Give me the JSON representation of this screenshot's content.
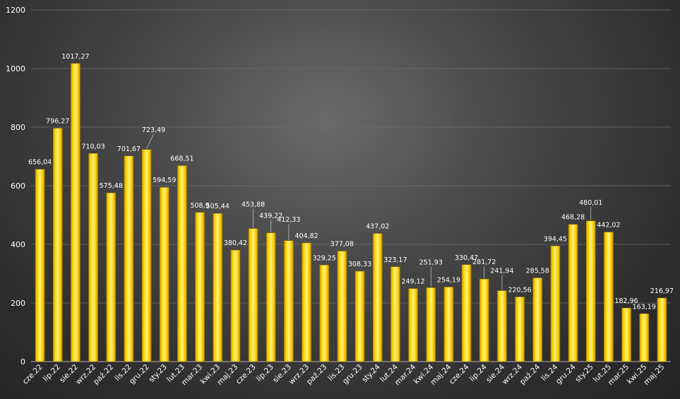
{
  "chart_data": {
    "type": "bar",
    "title": "",
    "xlabel": "",
    "ylabel": "",
    "ylim": [
      0,
      1200
    ],
    "yticks": [
      0,
      200,
      400,
      600,
      800,
      1000,
      1200
    ],
    "grid": true,
    "legend": "none",
    "bar_color": "#f5c400",
    "categories": [
      "cze.22",
      "lip.22",
      "sie.22",
      "wrz.22",
      "paź.22",
      "lis.22",
      "gru.22",
      "sty.23",
      "lut.23",
      "mar.23",
      "kwi.23",
      "maj.23",
      "cze.23",
      "lip.23",
      "sie.23",
      "wrz.23",
      "paź.23",
      "lis.23",
      "gru.23",
      "sty.24",
      "lut.24",
      "mar.24",
      "kwi.24",
      "maj.24",
      "cze.24",
      "lip.24",
      "sie.24",
      "wrz.24",
      "paź.24",
      "lis.24",
      "gru.24",
      "sty.25",
      "lut.25",
      "mar.25",
      "kwi.25",
      "maj.25"
    ],
    "values": [
      656.04,
      796.27,
      1017.27,
      710.03,
      575.48,
      701.67,
      723.49,
      594.59,
      668.51,
      508.9,
      505.44,
      380.42,
      453.88,
      439.22,
      412.33,
      404.82,
      329.25,
      377.08,
      308.33,
      437.02,
      323.17,
      249.12,
      251.93,
      254.19,
      330.47,
      281.72,
      241.94,
      220.56,
      285.58,
      394.45,
      468.28,
      480.01,
      442.02,
      182.96,
      163.19,
      216.97
    ],
    "value_labels": [
      "656,04",
      "796,27",
      "1017,27",
      "710,03",
      "575,48",
      "701,67",
      "723,49",
      "594,59",
      "668,51",
      "508,9",
      "505,44",
      "380,42",
      "453,88",
      "439,22",
      "412,33",
      "404,82",
      "329,25",
      "377,08",
      "308,33",
      "437,02",
      "323,17",
      "249,12",
      "251,93",
      "254,19",
      "330,47",
      "281,72",
      "241,94",
      "220,56",
      "285,58",
      "394,45",
      "468,28",
      "480,01",
      "442,02",
      "182,96",
      "163,19",
      "216,97"
    ]
  }
}
